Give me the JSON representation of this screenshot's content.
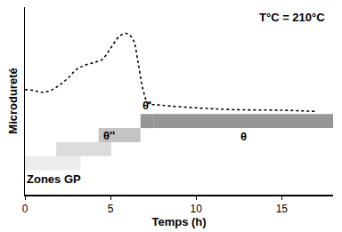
{
  "chart_data": {
    "type": "line",
    "x": [
      0,
      0.5,
      1,
      1.5,
      2,
      2.5,
      3,
      3.5,
      4,
      4.5,
      5,
      5.5,
      5.9,
      6.3,
      6.6,
      6.9,
      7.2,
      8,
      10,
      12,
      15,
      17
    ],
    "values": [
      5.6,
      5.56,
      5.46,
      5.56,
      5.83,
      6.2,
      6.67,
      6.9,
      7.04,
      7.2,
      7.8,
      8.43,
      8.6,
      8.3,
      7.1,
      5.6,
      4.9,
      4.77,
      4.63,
      4.54,
      4.5,
      4.44
    ],
    "color": "#000000",
    "line_style": "dot",
    "xlabel": "Temps (h)",
    "ylabel": "Microdureté",
    "annotations": [
      "T°C = 210°C"
    ],
    "xlim": [
      0,
      18
    ],
    "xticks": [
      0,
      5,
      10,
      15
    ],
    "ylim": [
      0,
      10
    ],
    "yticks": [],
    "tick_labels": "x",
    "grid": false,
    "phases": [
      {
        "label": "Zones GP",
        "start": 0,
        "end": 3.26,
        "row": 1,
        "color": "#ececec"
      },
      {
        "start": 1.83,
        "end": 5.04,
        "row": 2,
        "color": "#dcdcdc"
      },
      {
        "label": "θ''",
        "start": 4.3,
        "end": 6.75,
        "row": 3,
        "color": "#c4c4c4"
      },
      {
        "label": "θ'",
        "start": 6.75,
        "end": 7.5,
        "row": 4,
        "color": "#969696"
      },
      {
        "label": "θ",
        "start": 7.5,
        "end": 18,
        "row": 4,
        "color": "#969696"
      }
    ]
  }
}
